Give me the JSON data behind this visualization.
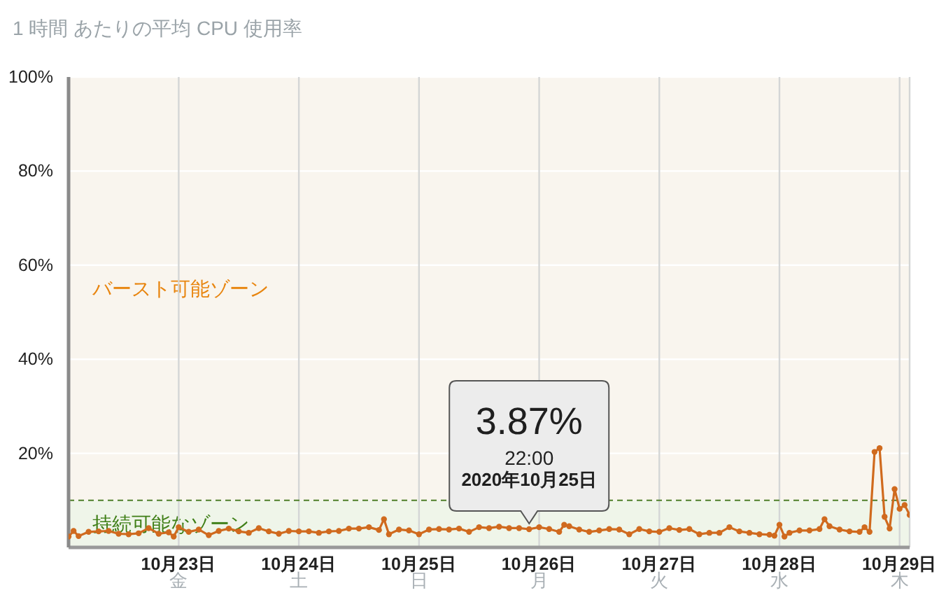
{
  "chart_data": {
    "type": "line",
    "title": "1 時間 あたりの平均 CPU 使用率",
    "x": [
      "2020-10-22T02:00",
      "2020-10-22T03:00",
      "2020-10-22T04:00",
      "2020-10-22T06:00",
      "2020-10-22T08:00",
      "2020-10-22T10:00",
      "2020-10-22T12:00",
      "2020-10-22T14:00",
      "2020-10-22T16:00",
      "2020-10-22T18:00",
      "2020-10-22T20:00",
      "2020-10-22T22:00",
      "2020-10-22T23:00",
      "2020-10-23T00:00",
      "2020-10-23T02:00",
      "2020-10-23T04:00",
      "2020-10-23T06:00",
      "2020-10-23T08:00",
      "2020-10-23T10:00",
      "2020-10-23T12:00",
      "2020-10-23T14:00",
      "2020-10-23T16:00",
      "2020-10-23T18:00",
      "2020-10-23T20:00",
      "2020-10-23T22:00",
      "2020-10-24T00:00",
      "2020-10-24T02:00",
      "2020-10-24T04:00",
      "2020-10-24T06:00",
      "2020-10-24T08:00",
      "2020-10-24T10:00",
      "2020-10-24T12:00",
      "2020-10-24T14:00",
      "2020-10-24T16:00",
      "2020-10-24T17:00",
      "2020-10-24T18:00",
      "2020-10-24T20:00",
      "2020-10-24T22:00",
      "2020-10-25T00:00",
      "2020-10-25T02:00",
      "2020-10-25T04:00",
      "2020-10-25T06:00",
      "2020-10-25T08:00",
      "2020-10-25T10:00",
      "2020-10-25T12:00",
      "2020-10-25T14:00",
      "2020-10-25T16:00",
      "2020-10-25T18:00",
      "2020-10-25T20:00",
      "2020-10-25T22:00",
      "2020-10-26T00:00",
      "2020-10-26T02:00",
      "2020-10-26T04:00",
      "2020-10-26T05:00",
      "2020-10-26T06:00",
      "2020-10-26T08:00",
      "2020-10-26T10:00",
      "2020-10-26T12:00",
      "2020-10-26T14:00",
      "2020-10-26T16:00",
      "2020-10-26T18:00",
      "2020-10-26T20:00",
      "2020-10-26T22:00",
      "2020-10-27T00:00",
      "2020-10-27T02:00",
      "2020-10-27T04:00",
      "2020-10-27T06:00",
      "2020-10-27T08:00",
      "2020-10-27T10:00",
      "2020-10-27T12:00",
      "2020-10-27T14:00",
      "2020-10-27T16:00",
      "2020-10-27T18:00",
      "2020-10-27T20:00",
      "2020-10-27T22:00",
      "2020-10-27T23:00",
      "2020-10-28T00:00",
      "2020-10-28T01:00",
      "2020-10-28T02:00",
      "2020-10-28T04:00",
      "2020-10-28T06:00",
      "2020-10-28T08:00",
      "2020-10-28T09:00",
      "2020-10-28T10:00",
      "2020-10-28T12:00",
      "2020-10-28T14:00",
      "2020-10-28T16:00",
      "2020-10-28T17:00",
      "2020-10-28T18:00",
      "2020-10-28T19:00",
      "2020-10-28T20:00",
      "2020-10-28T21:00",
      "2020-10-28T22:00",
      "2020-10-28T23:00",
      "2020-10-29T00:00",
      "2020-10-29T01:00",
      "2020-10-29T02:00"
    ],
    "values": [
      2.3,
      3.5,
      2.4,
      3.3,
      3.4,
      3.5,
      2.9,
      2.8,
      3.0,
      4.1,
      2.9,
      3.2,
      2.3,
      4.3,
      3.3,
      3.8,
      2.6,
      3.5,
      4.0,
      3.4,
      3.1,
      4.1,
      3.4,
      2.9,
      3.5,
      3.4,
      3.4,
      3.1,
      3.4,
      3.5,
      4.0,
      4.0,
      4.3,
      3.7,
      6.0,
      2.8,
      3.8,
      3.6,
      2.8,
      3.8,
      3.9,
      3.8,
      4.0,
      3.3,
      4.3,
      4.1,
      4.4,
      4.1,
      4.1,
      3.87,
      4.3,
      3.9,
      3.3,
      4.8,
      4.5,
      3.8,
      3.3,
      3.6,
      3.9,
      3.8,
      2.8,
      3.9,
      3.4,
      3.3,
      4.1,
      3.7,
      3.9,
      2.8,
      3.1,
      3.1,
      4.3,
      3.4,
      3.1,
      2.8,
      2.7,
      2.5,
      4.8,
      2.3,
      3.1,
      3.6,
      3.6,
      3.9,
      6.0,
      4.5,
      3.8,
      3.4,
      3.3,
      4.3,
      3.3,
      20.3,
      21.1,
      6.5,
      4.0,
      12.4,
      8.2,
      9.0,
      6.9
    ],
    "color": "#d06a1e",
    "marker": "circle",
    "xlim": [
      "2020-10-22T02:00",
      "2020-10-29T02:00"
    ],
    "xticks": [
      {
        "value": "2020-10-23",
        "label": "10月23日金"
      },
      {
        "value": "2020-10-24",
        "label": "10月24日土"
      },
      {
        "value": "2020-10-25",
        "label": "10月25日日"
      },
      {
        "value": "2020-10-26",
        "label": "10月26日月"
      },
      {
        "value": "2020-10-27",
        "label": "10月27日火"
      },
      {
        "value": "2020-10-28",
        "label": "10月28日水"
      },
      {
        "value": "2020-10-29",
        "label": "10月29日木"
      }
    ],
    "ylim": [
      0,
      100
    ],
    "yticks": [
      {
        "value": 20,
        "label": "20%"
      },
      {
        "value": 40,
        "label": "40%"
      },
      {
        "value": 60,
        "label": "60%"
      },
      {
        "value": 80,
        "label": "80%"
      },
      {
        "value": 100,
        "label": "100%"
      }
    ],
    "grid": true,
    "bands": [
      {
        "axis": "y",
        "from": 10,
        "to": 100,
        "label": "バースト可能ゾーン",
        "color": "#f9f5ee"
      },
      {
        "axis": "y",
        "from": 0,
        "to": 10,
        "label": "持続可能なゾーン",
        "color": "#eff5e9"
      }
    ],
    "ref_lines": [
      {
        "axis": "y",
        "value": 10,
        "color": "#4f7f2a",
        "line_style": "dashed"
      }
    ],
    "annotations": [
      {
        "text": "3.87%\n22:00\n2020年10月25日",
        "x": "2020-10-25T22:00",
        "y": 3.87
      }
    ]
  }
}
